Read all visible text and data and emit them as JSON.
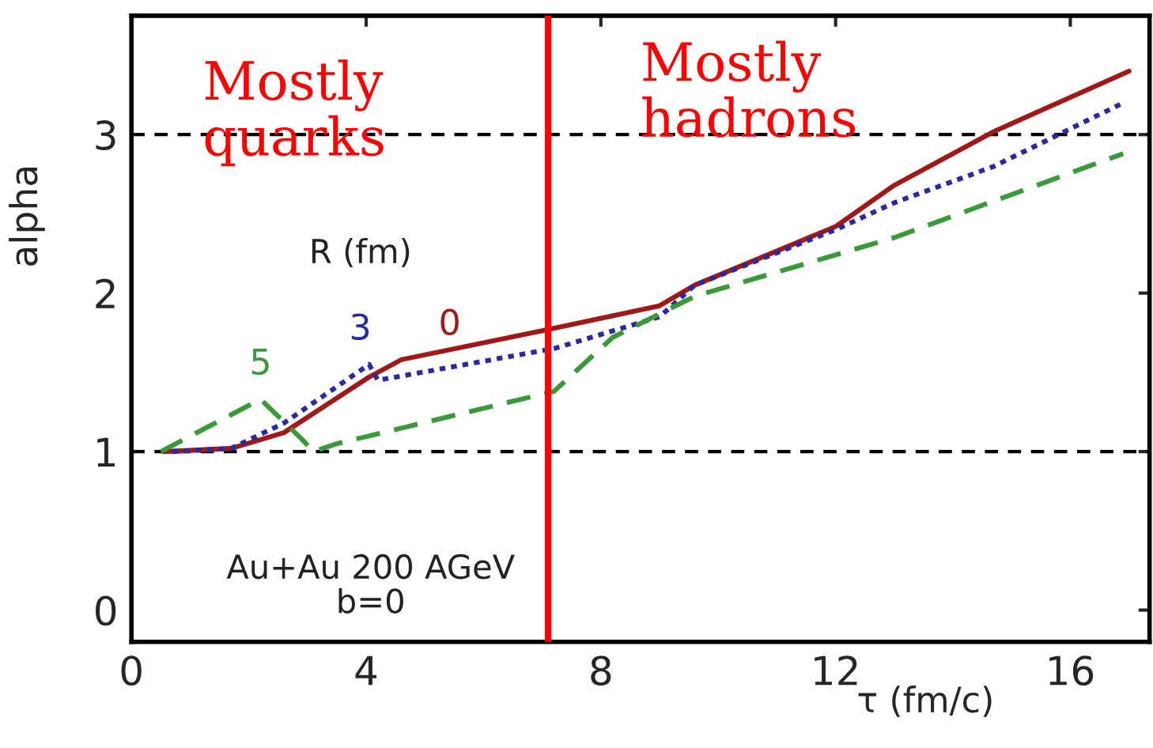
{
  "chart_data": {
    "type": "line",
    "xlabel": "τ (fm/c)",
    "ylabel": "alpha",
    "legend_title": "R (fm)",
    "xlim": [
      0,
      17.35
    ],
    "ylim": [
      -0.2,
      3.75
    ],
    "xticks": [
      0,
      4,
      8,
      12,
      16
    ],
    "yticks": [
      0,
      1,
      2,
      3
    ],
    "grid": false,
    "legend": false,
    "series": [
      {
        "name": "0",
        "color": "#a01818",
        "line_style": "solid",
        "x": [
          0.55,
          1.7,
          2.6,
          4.05,
          4.6,
          7.1,
          9.0,
          9.6,
          12.0,
          13.0,
          14.7,
          17.0
        ],
        "values": [
          1.0,
          1.02,
          1.12,
          1.47,
          1.58,
          1.77,
          1.92,
          2.05,
          2.42,
          2.68,
          3.02,
          3.4
        ]
      },
      {
        "name": "3",
        "color": "#2a2aa0",
        "line_style": "dotted",
        "x": [
          0.7,
          1.7,
          2.6,
          4.05,
          4.2,
          7.2,
          9.0,
          9.6,
          12.0,
          13.0,
          14.7,
          16.9
        ],
        "values": [
          1.0,
          1.02,
          1.18,
          1.55,
          1.45,
          1.65,
          1.85,
          2.05,
          2.4,
          2.57,
          2.8,
          3.2
        ]
      },
      {
        "name": "5",
        "color": "#3a9a3a",
        "line_style": "dashed",
        "x": [
          0.5,
          2.2,
          2.9,
          3.1,
          3.5,
          7.2,
          8.2,
          9.6,
          13.0,
          16.9
        ],
        "values": [
          1.0,
          1.33,
          1.08,
          1.0,
          1.05,
          1.38,
          1.72,
          1.98,
          2.35,
          2.88
        ]
      }
    ],
    "ref_lines": [
      {
        "axis": "y",
        "value": 1,
        "color": "#000000",
        "line_style": "dashed"
      },
      {
        "axis": "y",
        "value": 3,
        "color": "#000000",
        "line_style": "dashed"
      },
      {
        "axis": "x",
        "value": 7.1,
        "color": "#ff0000",
        "line_style": "solid"
      }
    ],
    "annotations": [
      "Mostly\nquarks",
      "Mostly\nhadrons",
      "Au+Au 200 AGeV\nb=0"
    ]
  }
}
